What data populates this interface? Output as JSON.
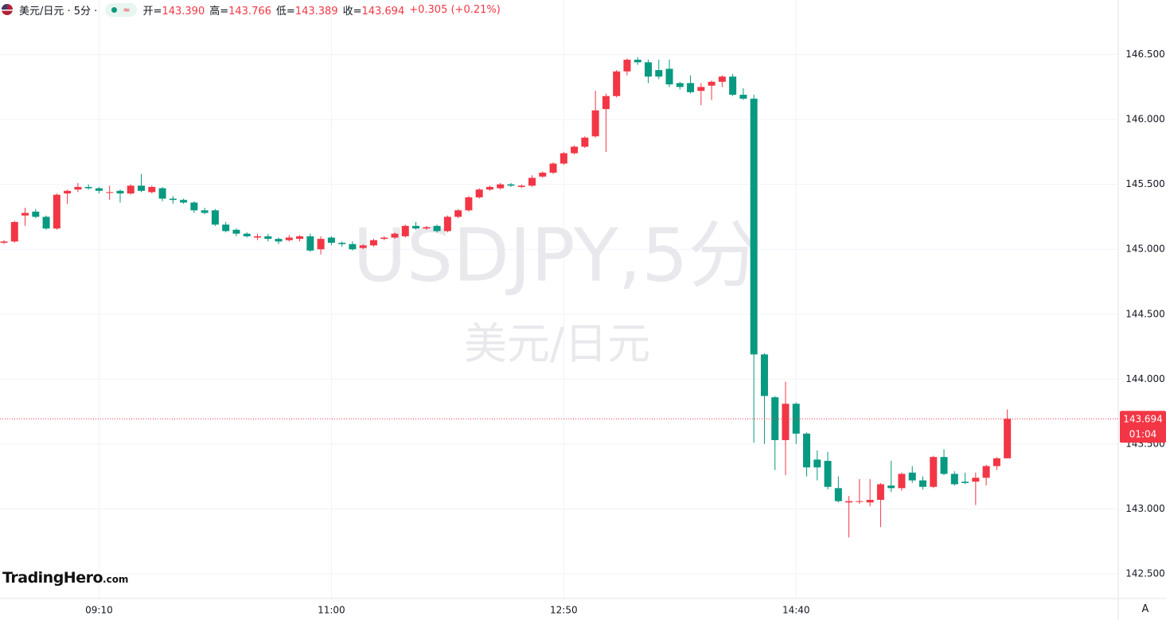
{
  "header": {
    "symbol": "美元/日元 · 5分 ·",
    "icon": "≈",
    "quote": [
      {
        "label": "开=",
        "value": "143.390"
      },
      {
        "label": "高=",
        "value": "143.766"
      },
      {
        "label": "低=",
        "value": "143.389"
      },
      {
        "label": "收=",
        "value": "143.694"
      }
    ],
    "change": "+0.305 (+0.21%)"
  },
  "logo": {
    "name": "TradingHero",
    "suffix": ".com"
  },
  "ui": {
    "auto_button": "A"
  },
  "chart_data": {
    "type": "candlestick",
    "watermark": [
      "USDJPY,5分",
      "美元/日元"
    ],
    "categories": [
      null,
      null,
      null,
      null,
      null,
      null,
      null,
      null,
      null,
      "09:10",
      null,
      null,
      null,
      null,
      null,
      null,
      null,
      null,
      null,
      null,
      null,
      null,
      null,
      null,
      null,
      null,
      null,
      null,
      null,
      null,
      null,
      "11:00",
      null,
      null,
      null,
      null,
      null,
      null,
      null,
      null,
      null,
      null,
      null,
      null,
      null,
      null,
      null,
      null,
      null,
      null,
      null,
      null,
      null,
      "12:50",
      null,
      null,
      null,
      null,
      null,
      null,
      null,
      null,
      null,
      null,
      null,
      null,
      null,
      null,
      null,
      null,
      null,
      null,
      null,
      null,
      null,
      "14:40",
      null,
      null,
      null,
      null,
      null,
      null,
      null,
      null,
      null,
      null,
      null,
      null,
      null,
      null,
      null,
      null,
      null,
      null,
      null,
      null
    ],
    "open": [
      145.05,
      145.06,
      145.26,
      145.29,
      145.25,
      145.16,
      145.43,
      145.46,
      145.48,
      145.47,
      145.44,
      145.45,
      145.43,
      145.49,
      145.44,
      145.47,
      145.39,
      145.38,
      145.36,
      145.3,
      145.3,
      145.19,
      145.15,
      145.12,
      145.09,
      145.1,
      145.08,
      145.07,
      145.08,
      145.1,
      145.0,
      145.09,
      145.05,
      145.04,
      145.01,
      145.03,
      145.08,
      145.09,
      145.1,
      145.18,
      145.16,
      145.18,
      145.14,
      145.25,
      145.3,
      145.4,
      145.46,
      145.47,
      145.5,
      145.48,
      145.49,
      145.56,
      145.59,
      145.66,
      145.74,
      145.79,
      145.87,
      146.08,
      146.18,
      146.37,
      146.46,
      146.44,
      146.38,
      146.39,
      146.28,
      146.28,
      146.22,
      146.26,
      146.29,
      146.33,
      146.19,
      146.16,
      144.19,
      143.86,
      143.53,
      143.81,
      143.58,
      143.38,
      143.37,
      143.16,
      143.05,
      143.06,
      143.05,
      143.07,
      143.18,
      143.16,
      143.28,
      143.22,
      143.17,
      143.4,
      143.27,
      143.21,
      143.21,
      143.24,
      143.33,
      143.39
    ],
    "high": [
      145.07,
      145.22,
      145.32,
      145.31,
      145.26,
      145.43,
      145.46,
      145.51,
      145.5,
      145.48,
      145.49,
      145.46,
      145.5,
      145.58,
      145.49,
      145.48,
      145.41,
      145.39,
      145.37,
      145.32,
      145.31,
      145.21,
      145.16,
      145.13,
      145.12,
      145.12,
      145.09,
      145.11,
      145.11,
      145.12,
      145.1,
      145.1,
      145.06,
      145.06,
      145.04,
      145.08,
      145.1,
      145.13,
      145.19,
      145.21,
      145.18,
      145.19,
      145.26,
      145.31,
      145.41,
      145.47,
      145.49,
      145.51,
      145.51,
      145.5,
      145.57,
      145.6,
      145.67,
      145.75,
      145.8,
      145.87,
      146.22,
      146.2,
      146.38,
      146.47,
      146.48,
      146.46,
      146.46,
      146.46,
      146.29,
      146.34,
      146.28,
      146.3,
      146.34,
      146.35,
      146.24,
      146.19,
      144.2,
      143.87,
      143.98,
      143.82,
      143.59,
      143.45,
      143.44,
      143.25,
      143.1,
      143.23,
      143.23,
      143.2,
      143.37,
      143.28,
      143.33,
      143.25,
      143.41,
      143.46,
      143.29,
      143.28,
      143.28,
      143.34,
      143.4,
      143.766
    ],
    "low": [
      145.04,
      145.05,
      145.18,
      145.24,
      145.15,
      145.15,
      145.35,
      145.44,
      145.46,
      145.43,
      145.38,
      145.36,
      145.42,
      145.44,
      145.43,
      145.37,
      145.35,
      145.35,
      145.28,
      145.27,
      145.18,
      145.13,
      145.1,
      145.09,
      145.07,
      145.06,
      145.04,
      145.06,
      145.06,
      144.98,
      144.96,
      145.03,
      145.02,
      144.99,
      145.0,
      145.02,
      145.07,
      145.08,
      145.09,
      145.15,
      145.15,
      145.13,
      145.13,
      145.24,
      145.29,
      145.39,
      145.45,
      145.46,
      145.48,
      145.47,
      145.48,
      145.55,
      145.58,
      145.65,
      145.73,
      145.78,
      145.86,
      145.75,
      146.17,
      146.34,
      146.42,
      146.28,
      146.31,
      146.25,
      146.23,
      146.2,
      146.11,
      146.15,
      146.25,
      146.18,
      146.15,
      143.51,
      143.5,
      143.3,
      143.26,
      143.5,
      143.25,
      143.22,
      143.15,
      143.05,
      142.78,
      143.04,
      143.02,
      142.86,
      143.13,
      143.14,
      143.2,
      143.15,
      143.16,
      143.26,
      143.18,
      143.19,
      143.03,
      143.18,
      143.3,
      143.389
    ],
    "close": [
      145.06,
      145.21,
      145.28,
      145.25,
      145.16,
      145.42,
      145.45,
      145.48,
      145.47,
      145.45,
      145.44,
      145.43,
      145.49,
      145.45,
      145.48,
      145.39,
      145.38,
      145.36,
      145.3,
      145.28,
      145.19,
      145.14,
      145.12,
      145.1,
      145.1,
      145.08,
      145.06,
      145.09,
      145.1,
      144.99,
      145.08,
      145.05,
      145.04,
      145.0,
      145.03,
      145.07,
      145.09,
      145.12,
      145.18,
      145.16,
      145.17,
      145.14,
      145.25,
      145.3,
      145.4,
      145.46,
      145.48,
      145.5,
      145.49,
      145.49,
      145.55,
      145.59,
      145.66,
      145.74,
      145.79,
      145.86,
      146.07,
      146.18,
      146.37,
      146.46,
      146.44,
      146.33,
      146.33,
      146.27,
      146.25,
      146.21,
      146.25,
      146.29,
      146.33,
      146.19,
      146.16,
      144.19,
      143.87,
      143.53,
      143.81,
      143.58,
      143.32,
      143.32,
      143.17,
      143.06,
      143.06,
      143.06,
      143.07,
      143.19,
      143.16,
      143.27,
      143.22,
      143.17,
      143.4,
      143.27,
      143.19,
      143.2,
      143.24,
      143.33,
      143.39,
      143.694
    ],
    "up_color": "#f23645",
    "down_color": "#089981",
    "ylim": [
      142.31,
      146.92
    ],
    "yticks": [
      {
        "value": 142.5,
        "label": "142.500"
      },
      {
        "value": 143,
        "label": "143.000"
      },
      {
        "value": 143.5,
        "label": "143.500"
      },
      {
        "value": 144,
        "label": "144.000"
      },
      {
        "value": 144.5,
        "label": "144.500"
      },
      {
        "value": 145,
        "label": "145.000"
      },
      {
        "value": 145.5,
        "label": "145.500"
      },
      {
        "value": 146,
        "label": "146.000"
      },
      {
        "value": 146.5,
        "label": "146.500"
      }
    ],
    "grid": true,
    "last_price": {
      "value": 143.694,
      "label": "143.694"
    },
    "countdown": "01:04"
  }
}
